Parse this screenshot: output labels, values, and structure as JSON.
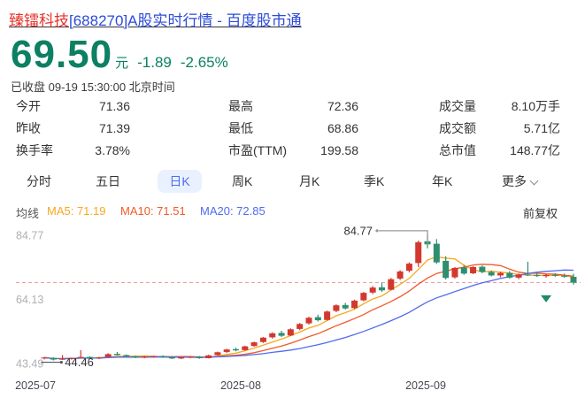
{
  "theme": {
    "price_green": "#0C8062",
    "down_green": "#1FA37C",
    "up_red": "#E23B3B",
    "title_blue": "#2C4BD8",
    "highlight_red": "#E6312B",
    "active_tab_blue": "#4E6EF2",
    "active_tab_bg": "#EAF1FE",
    "ma5": "#F6A822",
    "ma10": "#F05A28",
    "ma20": "#4F6BEF",
    "candle_up": "#D2382E",
    "candle_down": "#2E8F6E",
    "dashed_line": "#EE9D9B",
    "axis_gray": "#AEB0B5",
    "xlabel_gray": "#454A52",
    "marker_teal": "#1E8A68",
    "connector_gray": "#999999"
  },
  "title": {
    "highlight": "臻镭科技",
    "rest": "[688270]A股实时行情 - 百度股市通"
  },
  "quote": {
    "price": "69.50",
    "unit": "元",
    "change": "-1.89",
    "change_pct": "-2.65%",
    "status_line": "已收盘 09-19 15:30:00 北京时间"
  },
  "stats": {
    "cells": [
      {
        "label": "今开",
        "value": "71.36",
        "tone": "down"
      },
      {
        "label": "昨收",
        "value": "71.39",
        "tone": "neutral"
      },
      {
        "label": "换手率",
        "value": "3.78%",
        "tone": "neutral"
      },
      {
        "label": "最高",
        "value": "72.36",
        "tone": "up"
      },
      {
        "label": "最低",
        "value": "68.86",
        "tone": "down"
      },
      {
        "label": "市盈(TTM)",
        "value": "199.58",
        "tone": "neutral"
      },
      {
        "label": "成交量",
        "value": "8.10万手",
        "tone": "neutral"
      },
      {
        "label": "成交额",
        "value": "5.71亿",
        "tone": "neutral"
      },
      {
        "label": "总市值",
        "value": "148.77亿",
        "tone": "neutral"
      }
    ]
  },
  "tabs": {
    "items": [
      "分时",
      "五日",
      "日K",
      "周K",
      "月K",
      "季K",
      "年K"
    ],
    "active": "日K",
    "more_label": "更多"
  },
  "ma_legend": {
    "prefix": "均线",
    "ma5": "MA5: 71.19",
    "ma10": "MA10: 71.51",
    "ma20": "MA20: 72.85",
    "right_label": "前复权"
  },
  "chart_data": {
    "type": "candlestick",
    "title": "日K 前复权",
    "y_ticks": [
      "84.77",
      "64.13",
      "43.49"
    ],
    "x_ticks": [
      "2025-07",
      "2025-08",
      "2025-09"
    ],
    "ylim": [
      43.49,
      84.77
    ],
    "current_price_line": 69.5,
    "high_annotation": "84.77",
    "low_annotation": "44.46",
    "ma_periods": [
      5,
      10,
      20
    ],
    "marker": {
      "type": "down-triangle",
      "index": 55
    },
    "grid": false,
    "candles": [
      [
        45.1,
        45.6,
        44.8,
        45.4
      ],
      [
        45.3,
        45.5,
        44.46,
        44.75
      ],
      [
        44.8,
        46.2,
        44.6,
        45.0
      ],
      [
        45.0,
        45.4,
        44.7,
        45.3
      ],
      [
        45.4,
        47.8,
        45.2,
        45.6
      ],
      [
        45.6,
        45.8,
        45.0,
        45.2
      ],
      [
        45.2,
        45.6,
        44.9,
        45.5
      ],
      [
        45.6,
        46.8,
        45.4,
        46.5
      ],
      [
        46.6,
        47.2,
        46.0,
        46.2
      ],
      [
        46.2,
        46.4,
        45.6,
        45.8
      ],
      [
        45.8,
        46.0,
        45.2,
        45.4
      ],
      [
        45.4,
        45.9,
        45.2,
        45.7
      ],
      [
        45.7,
        46.0,
        45.4,
        45.9
      ],
      [
        45.9,
        46.1,
        45.3,
        45.5
      ],
      [
        45.5,
        45.7,
        44.9,
        45.1
      ],
      [
        45.1,
        45.6,
        44.9,
        45.5
      ],
      [
        45.5,
        45.8,
        45.2,
        45.6
      ],
      [
        45.6,
        45.9,
        45.0,
        45.2
      ],
      [
        45.2,
        46.3,
        45.1,
        46.1
      ],
      [
        46.2,
        47.3,
        46.0,
        47.1
      ],
      [
        47.2,
        48.2,
        46.9,
        48.0
      ],
      [
        48.1,
        48.6,
        47.4,
        47.7
      ],
      [
        47.8,
        49.2,
        47.6,
        49.0
      ],
      [
        49.1,
        50.5,
        48.9,
        50.3
      ],
      [
        50.4,
        52.0,
        50.1,
        51.8
      ],
      [
        51.9,
        53.5,
        51.5,
        53.2
      ],
      [
        53.3,
        54.0,
        52.0,
        52.4
      ],
      [
        52.5,
        54.8,
        52.3,
        54.5
      ],
      [
        54.6,
        56.5,
        54.2,
        56.2
      ],
      [
        56.4,
        58.5,
        56.0,
        58.2
      ],
      [
        58.4,
        59.2,
        57.0,
        57.4
      ],
      [
        57.5,
        60.5,
        57.3,
        60.2
      ],
      [
        60.4,
        62.5,
        60.0,
        62.2
      ],
      [
        62.3,
        63.0,
        60.8,
        61.2
      ],
      [
        61.3,
        64.0,
        61.0,
        63.7
      ],
      [
        63.8,
        66.5,
        63.5,
        66.2
      ],
      [
        66.3,
        68.4,
        65.8,
        67.9
      ],
      [
        68.0,
        69.5,
        66.5,
        67.0
      ],
      [
        67.2,
        71.0,
        67.0,
        70.6
      ],
      [
        70.8,
        73.5,
        70.3,
        73.1
      ],
      [
        73.3,
        76.0,
        72.8,
        75.6
      ],
      [
        75.8,
        83.0,
        74.5,
        82.5
      ],
      [
        82.8,
        84.77,
        80.5,
        81.8
      ],
      [
        82.0,
        83.5,
        75.5,
        76.0
      ],
      [
        76.5,
        78.0,
        70.5,
        71.0
      ],
      [
        71.2,
        74.5,
        70.8,
        74.2
      ],
      [
        74.4,
        75.2,
        72.0,
        72.4
      ],
      [
        72.5,
        74.8,
        72.2,
        74.5
      ],
      [
        74.6,
        75.0,
        72.5,
        72.9
      ],
      [
        72.9,
        73.4,
        71.5,
        71.8
      ],
      [
        71.8,
        73.0,
        71.2,
        72.6
      ],
      [
        72.6,
        73.2,
        70.8,
        71.1
      ],
      [
        71.1,
        72.4,
        70.6,
        72.1
      ],
      [
        72.1,
        76.2,
        71.6,
        71.9
      ],
      [
        71.9,
        72.6,
        71.3,
        71.6
      ],
      [
        71.6,
        72.3,
        71.1,
        72.0
      ],
      [
        72.0,
        72.5,
        71.4,
        71.7
      ],
      [
        71.7,
        72.4,
        71.1,
        71.39
      ],
      [
        71.36,
        72.36,
        68.86,
        69.5
      ]
    ]
  }
}
